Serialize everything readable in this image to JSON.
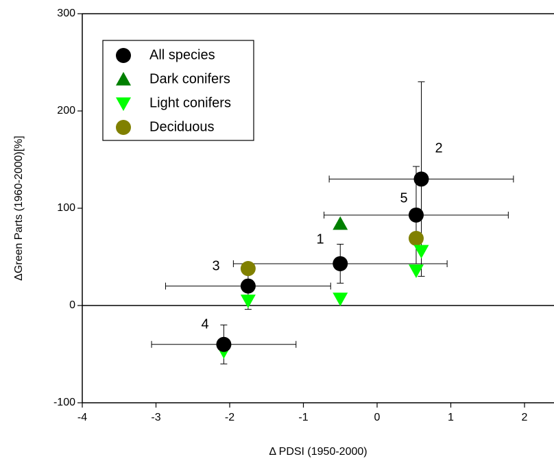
{
  "chart_data": {
    "type": "scatter",
    "x_label": "Δ PDSI (1950-2000)",
    "y_label": "ΔGreen Parts (1960-2000)[%]",
    "xlim": [
      -4,
      2.4
    ],
    "ylim": [
      -100,
      300
    ],
    "xticks": [
      -4,
      -3,
      -2,
      -1,
      0,
      1,
      2
    ],
    "yticks": [
      -100,
      0,
      100,
      200,
      300
    ],
    "legend": "upper left",
    "series": [
      {
        "name": "All species",
        "color": "#000000",
        "marker": "circle",
        "x": [
          -0.5,
          0.6,
          -1.75,
          -2.08,
          0.53
        ],
        "y": [
          43,
          130,
          20,
          -40,
          93
        ],
        "xerr": [
          1.45,
          1.25,
          1.12,
          0.98,
          1.25
        ],
        "yerr": [
          20,
          100,
          24,
          20,
          50
        ]
      },
      {
        "name": "Dark conifers",
        "color": "#007f00",
        "marker": "triangle-up",
        "x": [
          -0.5
        ],
        "y": [
          84
        ]
      },
      {
        "name": "Light conifers",
        "color": "#00ff00",
        "marker": "triangle-down",
        "x": [
          -1.75,
          -0.5,
          0.53,
          0.6,
          -2.08
        ],
        "y": [
          5,
          7,
          36,
          56,
          -47
        ]
      },
      {
        "name": "Deciduous",
        "color": "#808000",
        "marker": "circle",
        "x": [
          -1.75,
          0.53
        ],
        "y": [
          38,
          69
        ]
      }
    ],
    "annotations": [
      "1",
      "2",
      "3",
      "4",
      "5"
    ]
  }
}
